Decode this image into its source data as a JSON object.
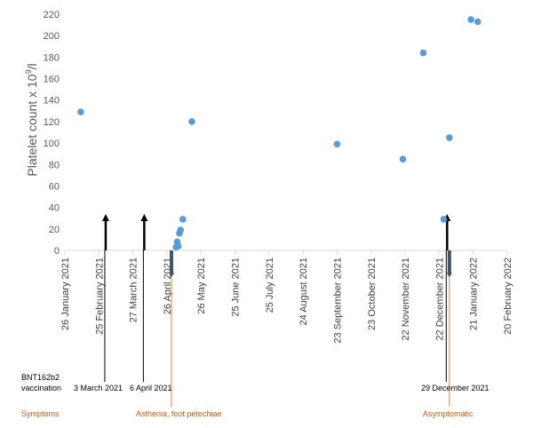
{
  "chart_data": {
    "type": "scatter",
    "ylabel": "Platelet count x 10",
    "ylabel_sup": "9",
    "ylabel_unit": "/l",
    "ylim": [
      0,
      220
    ],
    "yticks": [
      0,
      20,
      40,
      60,
      80,
      100,
      120,
      140,
      160,
      180,
      200,
      220
    ],
    "x_start": "2021-01-26",
    "x_end": "2022-02-20",
    "xticks": [
      {
        "date": "2021-01-26",
        "label": "26 January 2021"
      },
      {
        "date": "2021-02-25",
        "label": "25 February 2021"
      },
      {
        "date": "2021-03-27",
        "label": "27 March 2021"
      },
      {
        "date": "2021-04-26",
        "label": "26 April 2021"
      },
      {
        "date": "2021-05-26",
        "label": "26 May 2021"
      },
      {
        "date": "2021-06-25",
        "label": "25 June 2021"
      },
      {
        "date": "2021-07-25",
        "label": "25 July 2021"
      },
      {
        "date": "2021-08-24",
        "label": "24 August 2021"
      },
      {
        "date": "2021-09-23",
        "label": "23 September 2021"
      },
      {
        "date": "2021-10-23",
        "label": "23 October 2021"
      },
      {
        "date": "2021-11-22",
        "label": "22 November 2021"
      },
      {
        "date": "2021-12-22",
        "label": "22 December 2021"
      },
      {
        "date": "2022-01-21",
        "label": "21 January 2022"
      },
      {
        "date": "2022-02-20",
        "label": "20 February 2022"
      }
    ],
    "points": [
      {
        "x": "2021-02-09",
        "y": 129
      },
      {
        "x": "2021-05-04",
        "y": 3
      },
      {
        "x": "2021-05-05",
        "y": 8
      },
      {
        "x": "2021-05-06",
        "y": 4
      },
      {
        "x": "2021-05-07",
        "y": 16
      },
      {
        "x": "2021-05-08",
        "y": 19
      },
      {
        "x": "2021-05-10",
        "y": 29
      },
      {
        "x": "2021-05-18",
        "y": 120
      },
      {
        "x": "2021-09-23",
        "y": 99
      },
      {
        "x": "2021-11-20",
        "y": 85
      },
      {
        "x": "2021-12-08",
        "y": 184
      },
      {
        "x": "2021-12-26",
        "y": 29
      },
      {
        "x": "2021-12-31",
        "y": 105
      },
      {
        "x": "2022-01-19",
        "y": 215
      },
      {
        "x": "2022-01-25",
        "y": 213
      }
    ],
    "vaccinations": [
      "2021-03-03",
      "2021-04-06",
      "2021-12-29"
    ],
    "symptom_events": [
      "2021-04-30",
      "2021-12-31"
    ],
    "colors": {
      "points": "#5b9bd5",
      "vaccination_arrow": "#000000",
      "symptom_bar": "#44546a",
      "symptom_line": "#ed7d31",
      "axis": "#d9d9d9",
      "annotation_text": "#c55a11"
    }
  },
  "annotations": {
    "vaccine_name": "BNT162b2",
    "vaccination_label": "vaccination",
    "vax1_date": "3 March 2021",
    "vax2_date": "6 April 2021",
    "vax3_date": "29 December 2021",
    "symptoms_label": "Symptoms",
    "symptom1": "Asthenia, foot petechiae",
    "symptom2": "Asymptomatic"
  }
}
